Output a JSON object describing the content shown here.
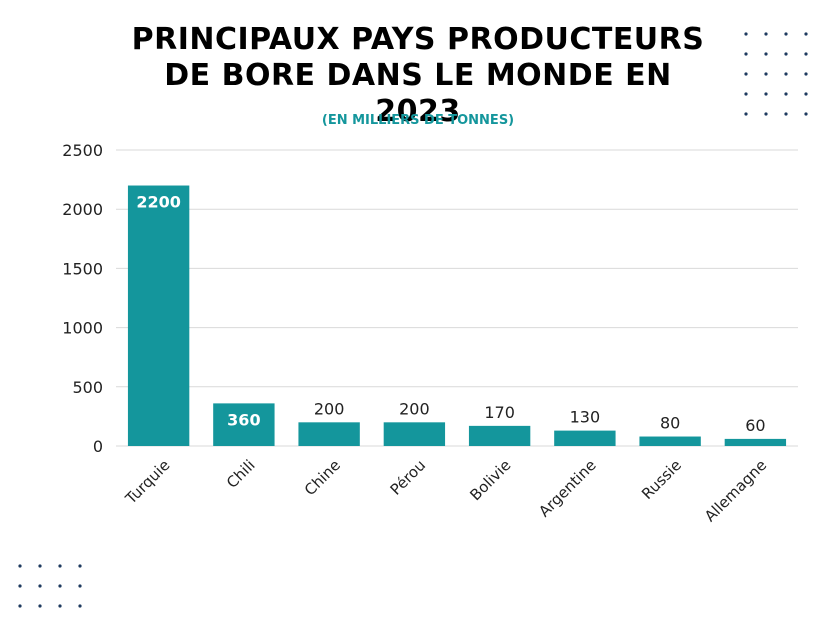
{
  "chart_data": {
    "type": "bar",
    "title": "PRINCIPAUX PAYS PRODUCTEURS DE BORE DANS LE MONDE EN 2023",
    "subtitle": "(EN MILLIERS DE TONNES)",
    "categories": [
      "Turquie",
      "Chili",
      "Chine",
      "Pérou",
      "Bolivie",
      "Argentine",
      "Russie",
      "Allemagne"
    ],
    "values": [
      2200,
      360,
      200,
      200,
      170,
      130,
      80,
      60
    ],
    "data_labels": [
      "2200",
      "360",
      "200",
      "200",
      "170",
      "130",
      "80",
      "60"
    ],
    "ylim": [
      0,
      2500
    ],
    "yticks": [
      0,
      500,
      1000,
      1500,
      2000,
      2500
    ],
    "ytick_labels": [
      "0",
      "500",
      "1000",
      "1500",
      "2000",
      "2500"
    ],
    "xlabel": "",
    "ylabel": "",
    "grid": true,
    "legend": "none"
  },
  "colors": {
    "bar": "#14969c",
    "accent_dots": "#1e3a5f",
    "grid": "#d9d9d9"
  }
}
